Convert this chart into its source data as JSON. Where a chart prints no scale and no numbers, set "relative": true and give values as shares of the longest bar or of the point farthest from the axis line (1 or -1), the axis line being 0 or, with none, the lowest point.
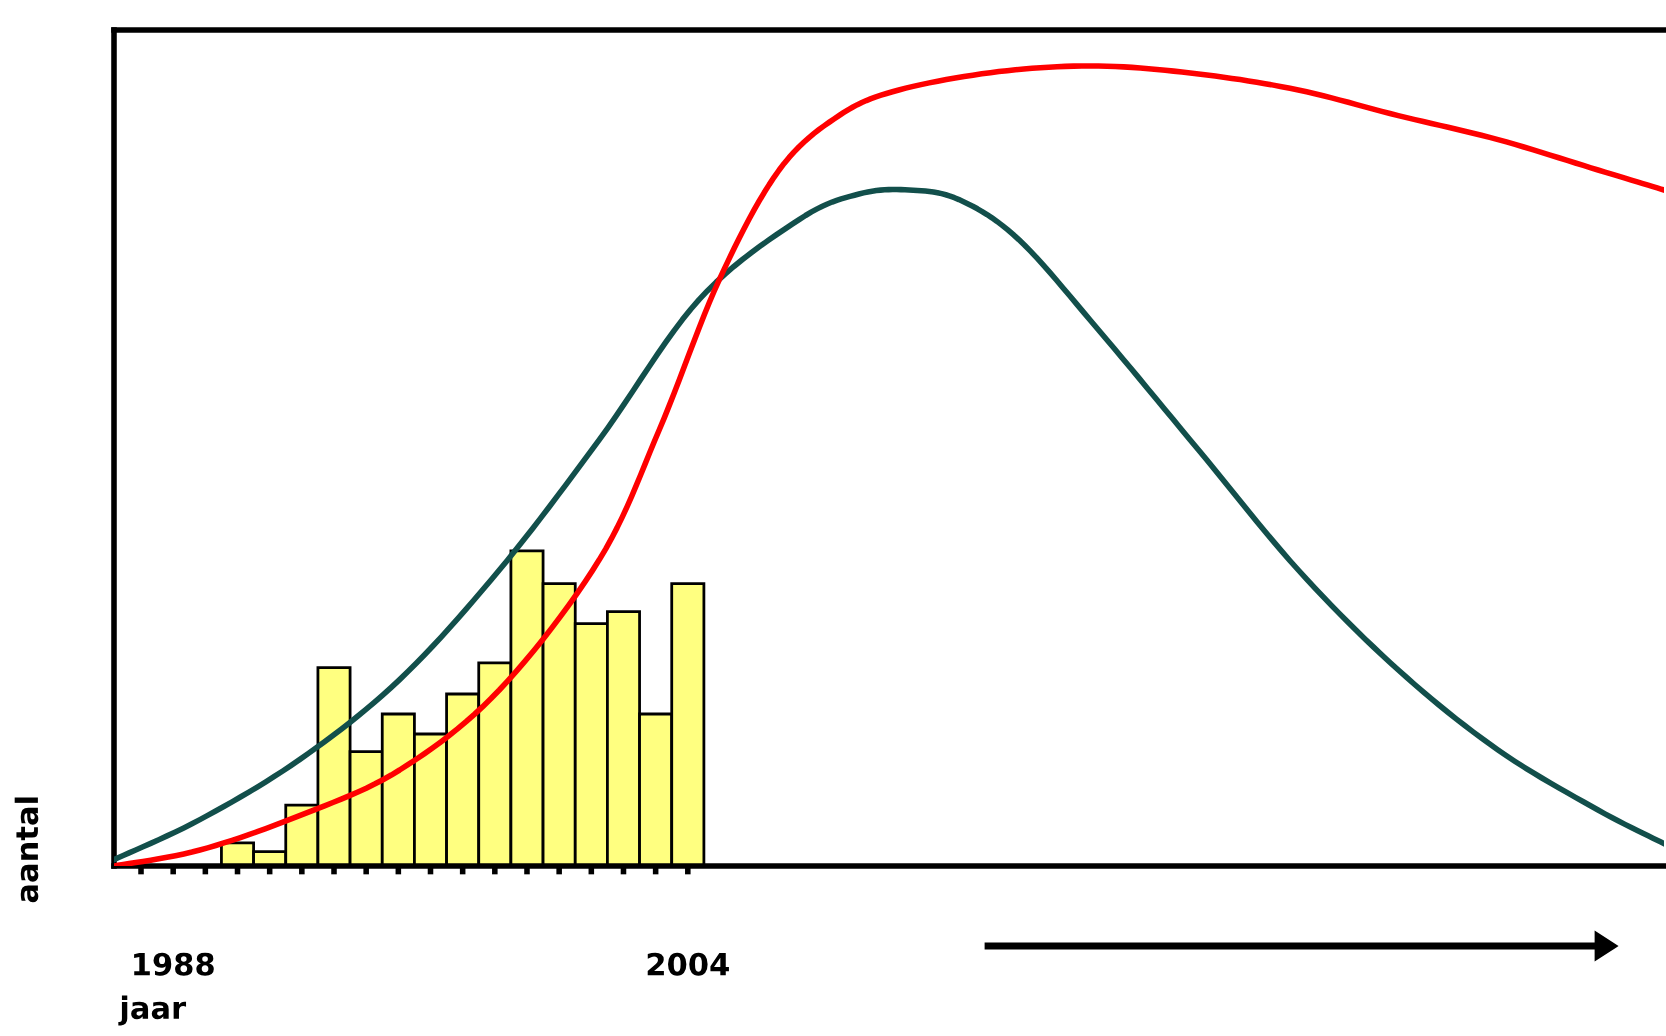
{
  "chart_data": {
    "type": "bar",
    "relative": true,
    "xlabel": "jaar",
    "ylabel": "aantal",
    "x": [
      1990,
      1991,
      1992,
      1993,
      1994,
      1995,
      1996,
      1997,
      1998,
      1999,
      2000,
      2001,
      2002,
      2003,
      2004
    ],
    "xlim": [
      1986.16,
      2034.35
    ],
    "xticks": [
      {
        "value": 1987,
        "label": null
      },
      1988,
      {
        "value": 1989,
        "label": null
      },
      {
        "value": 1990,
        "label": null
      },
      {
        "value": 1991,
        "label": null
      },
      {
        "value": 1992,
        "label": null
      },
      {
        "value": 1993,
        "label": null
      },
      {
        "value": 1994,
        "label": null
      },
      {
        "value": 1995,
        "label": null
      },
      {
        "value": 1996,
        "label": null
      },
      {
        "value": 1997,
        "label": null
      },
      {
        "value": 1998,
        "label": null
      },
      {
        "value": 1999,
        "label": null
      },
      {
        "value": 2000,
        "label": null
      },
      {
        "value": 2001,
        "label": null
      },
      {
        "value": 2002,
        "label": null
      },
      {
        "value": 2003,
        "label": null
      },
      2004
    ],
    "grid": false,
    "series": [
      {
        "color": "#ffff80",
        "values": [
          0.029,
          0.018,
          0.076,
          0.248,
          0.143,
          0.19,
          0.165,
          0.215,
          0.254,
          0.394,
          0.353,
          0.303,
          0.318,
          0.19,
          0.353
        ]
      },
      {
        "type": "line",
        "color": "#124f4b",
        "x": [
          1986.16,
          1988.83,
          1991.93,
          1995.04,
          1998.14,
          2001.25,
          2004.35,
          2007.46,
          2009.32,
          2010.88,
          2012.43,
          2014.29,
          2016.77,
          2019.88,
          2022.98,
          2026.09,
          2029.19,
          2032.3,
          2034.35
        ],
        "values": [
          0.008,
          0.058,
          0.133,
          0.233,
          0.37,
          0.533,
          0.708,
          0.808,
          0.84,
          0.845,
          0.833,
          0.783,
          0.67,
          0.52,
          0.37,
          0.245,
          0.145,
          0.07,
          0.028
        ]
      },
      {
        "type": "line",
        "color": "#ff0000",
        "x": [
          1986.16,
          1988.83,
          1991.93,
          1995.04,
          1998.14,
          2001.25,
          2003.11,
          2004.98,
          2006.84,
          2008.7,
          2010.56,
          2013.67,
          2016.77,
          2019.88,
          2022.98,
          2026.09,
          2029.19,
          2032.3,
          2034.35
        ],
        "values": [
          0,
          0.02,
          0.063,
          0.12,
          0.22,
          0.383,
          0.545,
          0.733,
          0.87,
          0.938,
          0.97,
          0.993,
          1,
          0.99,
          0.97,
          0.938,
          0.908,
          0.87,
          0.845
        ]
      }
    ]
  }
}
